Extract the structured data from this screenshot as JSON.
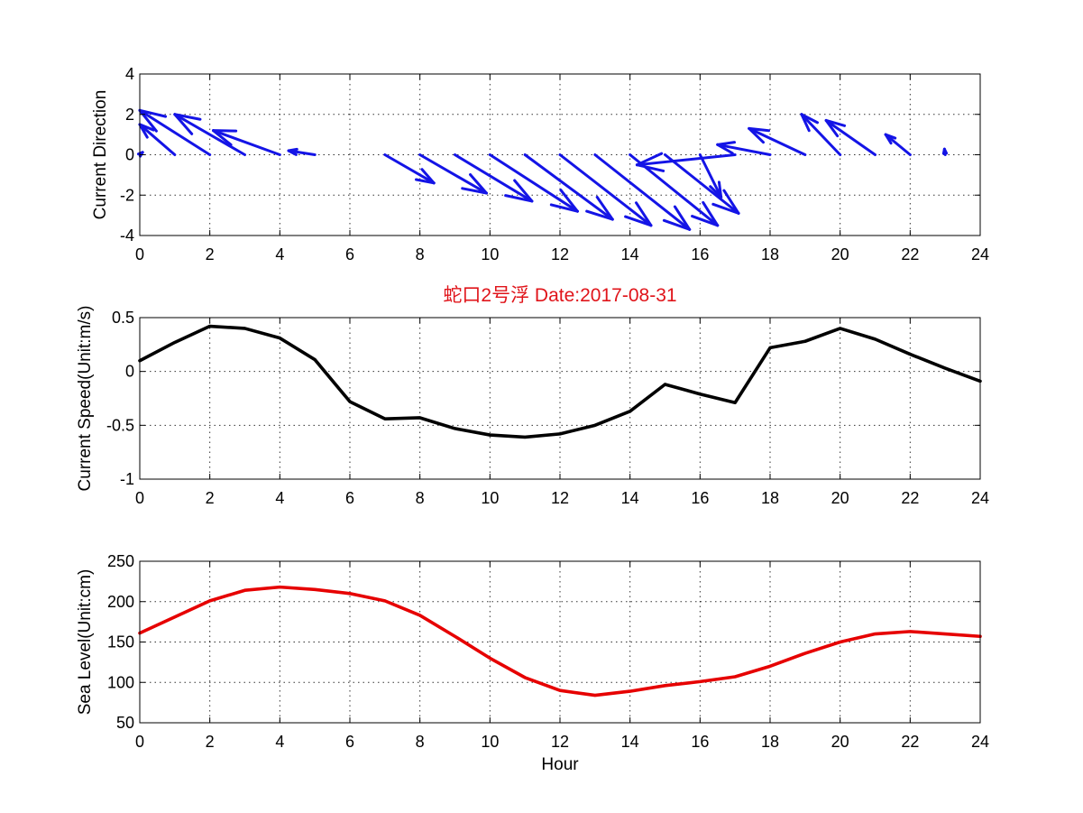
{
  "chart_data": [
    {
      "type": "quiver",
      "title": "",
      "xlabel": "",
      "ylabel": "Current Direction",
      "xlim": [
        0,
        24
      ],
      "ylim": [
        -4,
        4
      ],
      "xticks": [
        0,
        2,
        4,
        6,
        8,
        10,
        12,
        14,
        16,
        18,
        20,
        22,
        24
      ],
      "yticks": [
        -4,
        -2,
        0,
        2,
        4
      ],
      "grid": true,
      "color": "#1414e6",
      "vectors": [
        {
          "x": 0,
          "u": 0.08,
          "v": 0.12
        },
        {
          "x": 1,
          "u": -1.0,
          "v": 1.5
        },
        {
          "x": 2,
          "u": -2.0,
          "v": 2.2
        },
        {
          "x": 3,
          "u": -2.0,
          "v": 2.0
        },
        {
          "x": 4,
          "u": -1.9,
          "v": 1.2
        },
        {
          "x": 5,
          "u": -0.75,
          "v": 0.2
        },
        {
          "x": 6,
          "u": 0.0,
          "v": 0.0
        },
        {
          "x": 7,
          "u": 1.4,
          "v": -1.4
        },
        {
          "x": 8,
          "u": 1.9,
          "v": -1.9
        },
        {
          "x": 9,
          "u": 2.2,
          "v": -2.3
        },
        {
          "x": 10,
          "u": 2.5,
          "v": -2.8
        },
        {
          "x": 11,
          "u": 2.5,
          "v": -3.2
        },
        {
          "x": 12,
          "u": 2.6,
          "v": -3.5
        },
        {
          "x": 13,
          "u": 2.7,
          "v": -3.7
        },
        {
          "x": 14,
          "u": 2.5,
          "v": -3.5
        },
        {
          "x": 15,
          "u": 2.1,
          "v": -2.9
        },
        {
          "x": 16,
          "u": 0.6,
          "v": -2.1
        },
        {
          "x": 17,
          "u": -2.8,
          "v": -0.5
        },
        {
          "x": 18,
          "u": -1.5,
          "v": 0.5
        },
        {
          "x": 19,
          "u": -1.6,
          "v": 1.3
        },
        {
          "x": 20,
          "u": -1.1,
          "v": 2.0
        },
        {
          "x": 21,
          "u": -1.4,
          "v": 1.7
        },
        {
          "x": 22,
          "u": -0.7,
          "v": 1.0
        },
        {
          "x": 23,
          "u": -0.02,
          "v": 0.28
        }
      ]
    },
    {
      "type": "line",
      "title": "蛇口2号浮    Date:2017-08-31",
      "xlabel": "",
      "ylabel": "Current Speed(Unit:m/s)",
      "xlim": [
        0,
        24
      ],
      "ylim": [
        -1,
        0.5
      ],
      "xticks": [
        0,
        2,
        4,
        6,
        8,
        10,
        12,
        14,
        16,
        18,
        20,
        22,
        24
      ],
      "yticks": [
        -1,
        -0.5,
        0,
        0.5
      ],
      "ytick_labels": [
        "-1",
        "-0.5",
        "0",
        "0.5"
      ],
      "grid": true,
      "color": "#000000",
      "x": [
        0,
        1,
        2,
        3,
        4,
        5,
        6,
        7,
        8,
        9,
        10,
        11,
        12,
        13,
        14,
        15,
        16,
        17,
        18,
        19,
        20,
        21,
        22,
        23,
        24
      ],
      "y": [
        0.1,
        0.27,
        0.42,
        0.4,
        0.31,
        0.11,
        -0.28,
        -0.44,
        -0.43,
        -0.53,
        -0.59,
        -0.61,
        -0.58,
        -0.5,
        -0.37,
        -0.12,
        -0.21,
        -0.29,
        0.22,
        0.28,
        0.4,
        0.3,
        0.16,
        0.03,
        -0.09
      ]
    },
    {
      "type": "line",
      "title": "",
      "xlabel": "Hour",
      "ylabel": "Sea Level(Unit:cm)",
      "xlim": [
        0,
        24
      ],
      "ylim": [
        50,
        250
      ],
      "xticks": [
        0,
        2,
        4,
        6,
        8,
        10,
        12,
        14,
        16,
        18,
        20,
        22,
        24
      ],
      "yticks": [
        50,
        100,
        150,
        200,
        250
      ],
      "grid": true,
      "color": "#e60000",
      "x": [
        0,
        1,
        2,
        3,
        4,
        5,
        6,
        7,
        8,
        9,
        10,
        11,
        12,
        13,
        14,
        15,
        16,
        17,
        18,
        19,
        20,
        21,
        22,
        23,
        24
      ],
      "y": [
        161,
        181,
        201,
        214,
        218,
        215,
        210,
        201,
        183,
        157,
        130,
        106,
        90,
        84,
        89,
        96,
        101,
        107,
        120,
        136,
        150,
        160,
        163,
        160,
        157
      ]
    }
  ]
}
